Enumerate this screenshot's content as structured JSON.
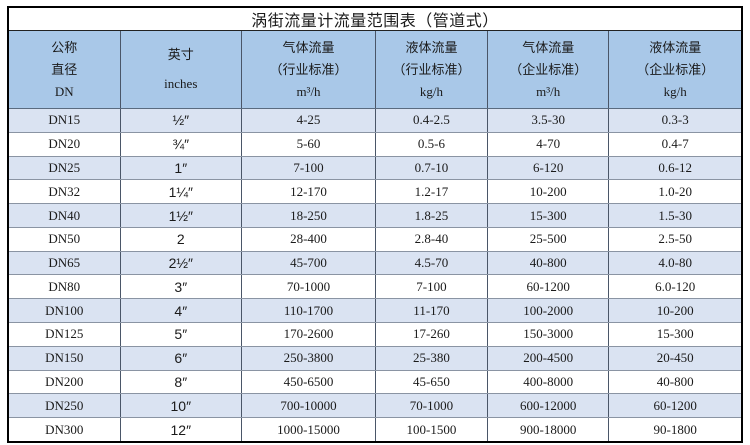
{
  "colors": {
    "header_bg": "#a9c8e8",
    "row_alt_bg": "#dae3f2",
    "row_bg": "#ffffff",
    "outer_border": "#000000",
    "grid_vertical": "#4a5668",
    "grid_horizontal": "#8a94a3",
    "header_separator": "#5a6b7f",
    "text": "#1a1a1a"
  },
  "chart_data": {
    "type": "table",
    "title": "涡街流量计流量范围表（管道式）",
    "columns": [
      {
        "name": "公称直径DN",
        "lines": [
          "公称",
          "直径",
          "DN"
        ]
      },
      {
        "name": "英寸inches",
        "lines": [
          "英寸",
          "inches"
        ]
      },
      {
        "name": "气体流量（行业标准）m³/h",
        "lines": [
          "气体流量",
          "（行业标准）",
          "m³/h"
        ]
      },
      {
        "name": "液体流量（行业标准）kg/h",
        "lines": [
          "液体流量",
          "（行业标准）",
          "kg/h"
        ]
      },
      {
        "name": "气体流量（企业标准）m³/h",
        "lines": [
          "气体流量",
          "（企业标准）",
          "m³/h"
        ]
      },
      {
        "name": "液体流量（企业标准）kg/h",
        "lines": [
          "液体流量",
          "（企业标准）",
          "kg/h"
        ]
      }
    ],
    "rows": [
      [
        "DN15",
        "½″",
        "4-25",
        "0.4-2.5",
        "3.5-30",
        "0.3-3"
      ],
      [
        "DN20",
        "¾″",
        "5-60",
        "0.5-6",
        "4-70",
        "0.4-7"
      ],
      [
        "DN25",
        "1″",
        "7-100",
        "0.7-10",
        "6-120",
        "0.6-12"
      ],
      [
        "DN32",
        "1¼″",
        "12-170",
        "1.2-17",
        "10-200",
        "1.0-20"
      ],
      [
        "DN40",
        "1½″",
        "18-250",
        "1.8-25",
        "15-300",
        "1.5-30"
      ],
      [
        "DN50",
        "2",
        "28-400",
        "2.8-40",
        "25-500",
        "2.5-50"
      ],
      [
        "DN65",
        "2½″",
        "45-700",
        "4.5-70",
        "40-800",
        "4.0-80"
      ],
      [
        "DN80",
        "3″",
        "70-1000",
        "7-100",
        "60-1200",
        "6.0-120"
      ],
      [
        "DN100",
        "4″",
        "110-1700",
        "11-170",
        "100-2000",
        "10-200"
      ],
      [
        "DN125",
        "5″",
        "170-2600",
        "17-260",
        "150-3000",
        "15-300"
      ],
      [
        "DN150",
        "6″",
        "250-3800",
        "25-380",
        "200-4500",
        "20-450"
      ],
      [
        "DN200",
        "8″",
        "450-6500",
        "45-650",
        "400-8000",
        "40-800"
      ],
      [
        "DN250",
        "10″",
        "700-10000",
        "70-1000",
        "600-12000",
        "60-1200"
      ],
      [
        "DN300",
        "12″",
        "1000-15000",
        "100-1500",
        "900-18000",
        "90-1800"
      ]
    ]
  }
}
